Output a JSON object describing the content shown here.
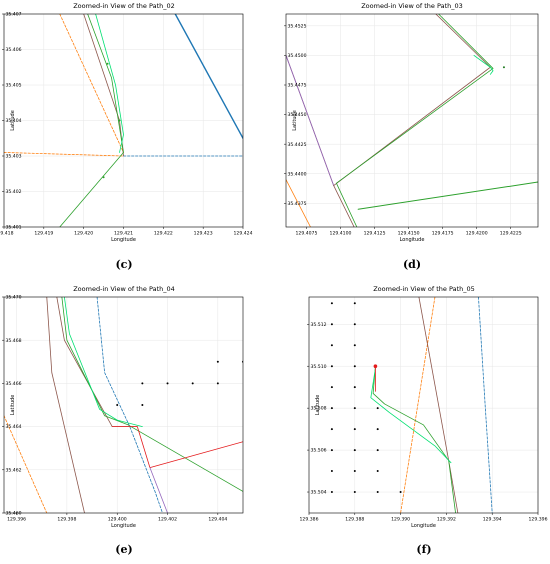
{
  "chart_data": [
    {
      "type": "line",
      "title": "Zoomed-in View of the Path_02",
      "xlabel": "Longitude",
      "ylabel": "Latitude",
      "caption": "(c)",
      "xlim": [
        129.418,
        129.424
      ],
      "ylim": [
        35.401,
        35.407
      ],
      "xticks": [
        129.418,
        129.419,
        129.42,
        129.421,
        129.422,
        129.423,
        129.424
      ],
      "yticks": [
        35.401,
        35.402,
        35.403,
        35.404,
        35.405,
        35.406,
        35.407
      ],
      "xdec": 3,
      "ydec": 3,
      "grid": true,
      "series": [
        {
          "color": "#ff7f0e",
          "dash": true,
          "points": [
            [
              129.4194,
              35.407
            ],
            [
              129.421,
              35.4031
            ]
          ]
        },
        {
          "color": "#ff7f0e",
          "dash": true,
          "points": [
            [
              129.418,
              35.4031
            ],
            [
              129.421,
              35.403
            ]
          ]
        },
        {
          "color": "#1f77b4",
          "dash": true,
          "points": [
            [
              129.421,
              35.403
            ],
            [
              129.424,
              35.403
            ]
          ]
        },
        {
          "color": "#1f77b4",
          "dash": false,
          "width": 1.4,
          "points": [
            [
              129.4223,
              35.407
            ],
            [
              129.424,
              35.4035
            ]
          ]
        },
        {
          "color": "#8c564b",
          "dash": false,
          "points": [
            [
              129.42,
              35.407
            ],
            [
              129.4209,
              35.404
            ],
            [
              129.421,
              35.403
            ]
          ]
        },
        {
          "color": "#2ca02c",
          "dash": false,
          "points": [
            [
              129.4201,
              35.407
            ],
            [
              129.4207,
              35.4052
            ],
            [
              129.4209,
              35.4038
            ],
            [
              129.421,
              35.4031
            ],
            [
              129.4194,
              35.401
            ]
          ]
        },
        {
          "color": "#00e070",
          "dash": false,
          "points": [
            [
              129.4203,
              35.407
            ],
            [
              129.4208,
              35.405
            ],
            [
              129.421,
              35.4036
            ],
            [
              129.4209,
              35.4031
            ]
          ]
        }
      ],
      "markers": [
        {
          "x": 129.4206,
          "y": 35.4056,
          "color": "#2ca02c"
        },
        {
          "x": 129.4209,
          "y": 35.404,
          "color": "#2ca02c"
        },
        {
          "x": 129.4205,
          "y": 35.4024,
          "color": "#2ca02c"
        }
      ]
    },
    {
      "type": "line",
      "title": "Zoomed-in View of the Path_03",
      "xlabel": "Longitude",
      "ylabel": "Latitude",
      "caption": "(d)",
      "xlim": [
        129.406,
        129.4245
      ],
      "ylim": [
        35.4355,
        35.4535
      ],
      "xticks": [
        129.4075,
        129.41,
        129.4125,
        129.415,
        129.4175,
        129.42,
        129.4225
      ],
      "yticks": [
        35.4375,
        35.44,
        35.4425,
        35.445,
        35.4475,
        35.45,
        35.4525
      ],
      "xdec": 4,
      "ydec": 4,
      "grid": true,
      "series": [
        {
          "color": "#8c564b",
          "dash": false,
          "points": [
            [
              129.406,
              35.45
            ],
            [
              129.4095,
              35.439
            ],
            [
              129.411,
              35.4355
            ]
          ]
        },
        {
          "color": "#9467bd",
          "dash": false,
          "points": [
            [
              129.406,
              35.45
            ],
            [
              129.4095,
              35.439
            ]
          ]
        },
        {
          "color": "#ff7f0e",
          "dash": false,
          "points": [
            [
              129.406,
              35.4395
            ],
            [
              129.4078,
              35.4355
            ]
          ]
        },
        {
          "color": "#8c564b",
          "dash": false,
          "points": [
            [
              129.417,
              35.4535
            ],
            [
              129.421,
              35.449
            ],
            [
              129.4095,
              35.439
            ]
          ]
        },
        {
          "color": "#2ca02c",
          "dash": false,
          "points": [
            [
              129.4172,
              35.4535
            ],
            [
              129.4212,
              35.4489
            ],
            [
              129.4097,
              35.4392
            ],
            [
              129.4112,
              35.4355
            ]
          ]
        },
        {
          "color": "#00e070",
          "dash": false,
          "points": [
            [
              129.4198,
              35.45
            ],
            [
              129.421,
              35.449
            ],
            [
              129.4212,
              35.4487
            ],
            [
              129.421,
              35.4484
            ]
          ]
        },
        {
          "color": "#2ca02c",
          "dash": false,
          "width": 1.0,
          "points": [
            [
              129.4113,
              35.437
            ],
            [
              129.4245,
              35.4393
            ]
          ]
        }
      ],
      "markers": [
        {
          "x": 129.422,
          "y": 35.449,
          "color": "#1f7a1f"
        }
      ]
    },
    {
      "type": "line",
      "title": "Zoomed-in View of the Path_04",
      "xlabel": "Longitude",
      "ylabel": "Latitude",
      "caption": "(e)",
      "xlim": [
        129.3955,
        129.405
      ],
      "ylim": [
        35.46,
        35.47
      ],
      "xticks": [
        129.396,
        129.398,
        129.4,
        129.402,
        129.404
      ],
      "yticks": [
        35.46,
        35.462,
        35.464,
        35.466,
        35.468,
        35.47
      ],
      "xdec": 3,
      "ydec": 3,
      "grid": true,
      "series": [
        {
          "color": "#ff7f0e",
          "dash": true,
          "points": [
            [
              129.3955,
              35.4645
            ],
            [
              129.3972,
              35.46
            ]
          ]
        },
        {
          "color": "#8c564b",
          "dash": false,
          "points": [
            [
              129.3972,
              35.47
            ],
            [
              129.3974,
              35.4665
            ],
            [
              129.3987,
              35.46
            ]
          ]
        },
        {
          "color": "#1f77b4",
          "dash": true,
          "points": [
            [
              129.3992,
              35.47
            ],
            [
              129.3995,
              35.4665
            ],
            [
              129.4005,
              35.464
            ],
            [
              129.4015,
              35.461
            ],
            [
              129.4018,
              35.46
            ]
          ]
        },
        {
          "color": "#8c564b",
          "dash": false,
          "points": [
            [
              129.3976,
              35.47
            ],
            [
              129.3979,
              35.468
            ],
            [
              129.3998,
              35.464
            ],
            [
              129.4008,
              35.464
            ]
          ]
        },
        {
          "color": "#2ca02c",
          "dash": false,
          "points": [
            [
              129.3978,
              35.47
            ],
            [
              129.398,
              35.468
            ],
            [
              129.3995,
              35.4645
            ],
            [
              129.4004,
              35.4641
            ],
            [
              129.405,
              35.461
            ]
          ]
        },
        {
          "color": "#00e070",
          "dash": false,
          "points": [
            [
              129.3979,
              35.47
            ],
            [
              129.3981,
              35.4683
            ],
            [
              129.3993,
              35.4648
            ],
            [
              129.4,
              35.4643
            ],
            [
              129.401,
              35.464
            ]
          ]
        },
        {
          "color": "#e41a1c",
          "dash": false,
          "points": [
            [
              129.3998,
              35.464
            ],
            [
              129.4008,
              35.464
            ],
            [
              129.4013,
              35.4621
            ],
            [
              129.405,
              35.4633
            ]
          ]
        },
        {
          "color": "#9467bd",
          "dash": false,
          "points": [
            [
              129.4013,
              35.4621
            ],
            [
              129.402,
              35.46
            ]
          ]
        }
      ],
      "markers": [
        {
          "x": 129.401,
          "y": 35.466,
          "color": "#000"
        },
        {
          "x": 129.402,
          "y": 35.466,
          "color": "#000"
        },
        {
          "x": 129.403,
          "y": 35.466,
          "color": "#000"
        },
        {
          "x": 129.404,
          "y": 35.466,
          "color": "#000"
        },
        {
          "x": 129.4,
          "y": 35.465,
          "color": "#000"
        },
        {
          "x": 129.401,
          "y": 35.465,
          "color": "#000"
        },
        {
          "x": 129.404,
          "y": 35.467,
          "color": "#000"
        },
        {
          "x": 129.405,
          "y": 35.467,
          "color": "#000"
        }
      ]
    },
    {
      "type": "line",
      "title": "Zoomed-in View of the Path_05",
      "xlabel": "Longitude",
      "ylabel": "Latitude",
      "caption": "(f)",
      "xlim": [
        129.386,
        129.396
      ],
      "ylim": [
        35.503,
        35.5133
      ],
      "xticks": [
        129.386,
        129.388,
        129.39,
        129.392,
        129.394,
        129.396
      ],
      "yticks": [
        35.504,
        35.506,
        35.508,
        35.51,
        35.512
      ],
      "xdec": 3,
      "ydec": 3,
      "grid": true,
      "series": [
        {
          "color": "#ff7f0e",
          "dash": true,
          "points": [
            [
              129.3915,
              35.5133
            ],
            [
              129.39,
              35.503
            ]
          ]
        },
        {
          "color": "#8c564b",
          "dash": false,
          "points": [
            [
              129.3908,
              35.5133
            ],
            [
              129.3921,
              35.5055
            ],
            [
              129.3925,
              35.503
            ]
          ]
        },
        {
          "color": "#1f77b4",
          "dash": true,
          "points": [
            [
              129.3934,
              35.5133
            ],
            [
              129.3937,
              35.508
            ],
            [
              129.394,
              35.503
            ]
          ]
        },
        {
          "color": "#2ca02c",
          "dash": false,
          "points": [
            [
              129.3889,
              35.51
            ],
            [
              129.3888,
              35.5087
            ],
            [
              129.3893,
              35.5082
            ],
            [
              129.391,
              35.5072
            ],
            [
              129.3921,
              35.5055
            ],
            [
              129.3924,
              35.503
            ]
          ]
        },
        {
          "color": "#00e070",
          "dash": false,
          "points": [
            [
              129.3889,
              35.5099
            ],
            [
              129.3887,
              35.5085
            ],
            [
              129.3895,
              35.5078
            ],
            [
              129.3915,
              35.5062
            ],
            [
              129.3922,
              35.5054
            ]
          ]
        },
        {
          "color": "#e41a1c",
          "dash": false,
          "points": [
            [
              129.3889,
              35.51
            ],
            [
              129.3889,
              35.5088
            ]
          ]
        }
      ],
      "markers": [
        {
          "x": 129.3889,
          "y": 35.51,
          "color": "#e41a1c",
          "size": 1.8
        },
        {
          "x": 129.387,
          "y": 35.513,
          "color": "#000"
        },
        {
          "x": 129.387,
          "y": 35.512,
          "color": "#000"
        },
        {
          "x": 129.387,
          "y": 35.511,
          "color": "#000"
        },
        {
          "x": 129.387,
          "y": 35.51,
          "color": "#000"
        },
        {
          "x": 129.387,
          "y": 35.509,
          "color": "#000"
        },
        {
          "x": 129.387,
          "y": 35.508,
          "color": "#000"
        },
        {
          "x": 129.387,
          "y": 35.507,
          "color": "#000"
        },
        {
          "x": 129.387,
          "y": 35.506,
          "color": "#000"
        },
        {
          "x": 129.387,
          "y": 35.505,
          "color": "#000"
        },
        {
          "x": 129.387,
          "y": 35.504,
          "color": "#000"
        },
        {
          "x": 129.388,
          "y": 35.513,
          "color": "#000"
        },
        {
          "x": 129.388,
          "y": 35.512,
          "color": "#000"
        },
        {
          "x": 129.388,
          "y": 35.511,
          "color": "#000"
        },
        {
          "x": 129.388,
          "y": 35.51,
          "color": "#000"
        },
        {
          "x": 129.388,
          "y": 35.509,
          "color": "#000"
        },
        {
          "x": 129.388,
          "y": 35.508,
          "color": "#000"
        },
        {
          "x": 129.388,
          "y": 35.507,
          "color": "#000"
        },
        {
          "x": 129.388,
          "y": 35.506,
          "color": "#000"
        },
        {
          "x": 129.388,
          "y": 35.505,
          "color": "#000"
        },
        {
          "x": 129.388,
          "y": 35.504,
          "color": "#000"
        },
        {
          "x": 129.389,
          "y": 35.508,
          "color": "#000"
        },
        {
          "x": 129.389,
          "y": 35.507,
          "color": "#000"
        },
        {
          "x": 129.389,
          "y": 35.506,
          "color": "#000"
        },
        {
          "x": 129.389,
          "y": 35.505,
          "color": "#000"
        },
        {
          "x": 129.389,
          "y": 35.504,
          "color": "#000"
        },
        {
          "x": 129.39,
          "y": 35.504,
          "color": "#000"
        }
      ]
    }
  ]
}
